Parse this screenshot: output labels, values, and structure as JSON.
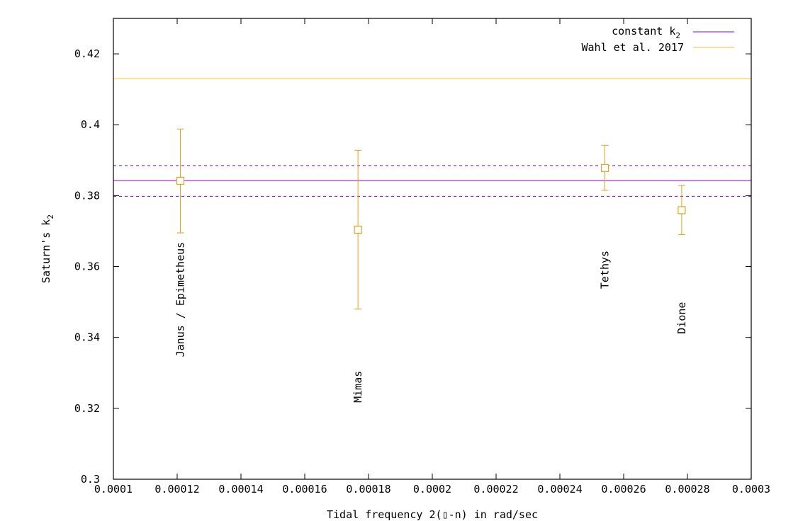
{
  "chart_data": {
    "type": "scatter",
    "xlabel": "Tidal frequency 2(▯-n) in rad/sec",
    "ylabel_main": "Saturn's  k",
    "ylabel_sub": "2",
    "xlim": [
      0.0001,
      0.0003
    ],
    "ylim": [
      0.3,
      0.43
    ],
    "x_ticks": [
      {
        "value": 0.0001,
        "label": "0.0001"
      },
      {
        "value": 0.00012,
        "label": "0.00012"
      },
      {
        "value": 0.00014,
        "label": "0.00014"
      },
      {
        "value": 0.00016,
        "label": "0.00016"
      },
      {
        "value": 0.00018,
        "label": "0.00018"
      },
      {
        "value": 0.0002,
        "label": "0.0002"
      },
      {
        "value": 0.00022,
        "label": "0.00022"
      },
      {
        "value": 0.00024,
        "label": "0.00024"
      },
      {
        "value": 0.00026,
        "label": "0.00026"
      },
      {
        "value": 0.00028,
        "label": "0.00028"
      },
      {
        "value": 0.0003,
        "label": "0.0003"
      }
    ],
    "y_ticks": [
      {
        "value": 0.3,
        "label": "0.3"
      },
      {
        "value": 0.32,
        "label": "0.32"
      },
      {
        "value": 0.34,
        "label": "0.34"
      },
      {
        "value": 0.36,
        "label": "0.36"
      },
      {
        "value": 0.38,
        "label": "0.38"
      },
      {
        "value": 0.4,
        "label": "0.4"
      },
      {
        "value": 0.42,
        "label": "0.42"
      }
    ],
    "grid": false,
    "legend_position": "top-right",
    "legend": [
      {
        "label_main": "constant k",
        "label_sub": "2",
        "color": "#9400d3"
      },
      {
        "label_main": "Wahl et al. 2017",
        "label_sub": "",
        "color": "#f0c030"
      }
    ],
    "hlines": [
      {
        "y": 0.413,
        "color": "#f0c030",
        "style": "solid"
      },
      {
        "y": 0.3842,
        "color": "#9400d3",
        "style": "solid"
      },
      {
        "y": 0.3885,
        "color": "#9400d3",
        "style": "dashed"
      },
      {
        "y": 0.3798,
        "color": "#9400d3",
        "style": "dashed"
      }
    ],
    "points": [
      {
        "name": "Janus / Epimetheus",
        "x": 0.000121,
        "y": 0.3842,
        "yerr_low": 0.3695,
        "yerr_high": 0.3988,
        "label_y": 0.3517
      },
      {
        "name": "Mimas",
        "x": 0.0001767,
        "y": 0.3704,
        "yerr_low": 0.348,
        "yerr_high": 0.3928,
        "label_y": 0.3271
      },
      {
        "name": "Tethys",
        "x": 0.0002541,
        "y": 0.3878,
        "yerr_low": 0.3815,
        "yerr_high": 0.3942,
        "label_y": 0.3601
      },
      {
        "name": "Dione",
        "x": 0.0002782,
        "y": 0.3759,
        "yerr_low": 0.369,
        "yerr_high": 0.3829,
        "label_y": 0.3465
      }
    ],
    "point_color": "#e8a020"
  }
}
